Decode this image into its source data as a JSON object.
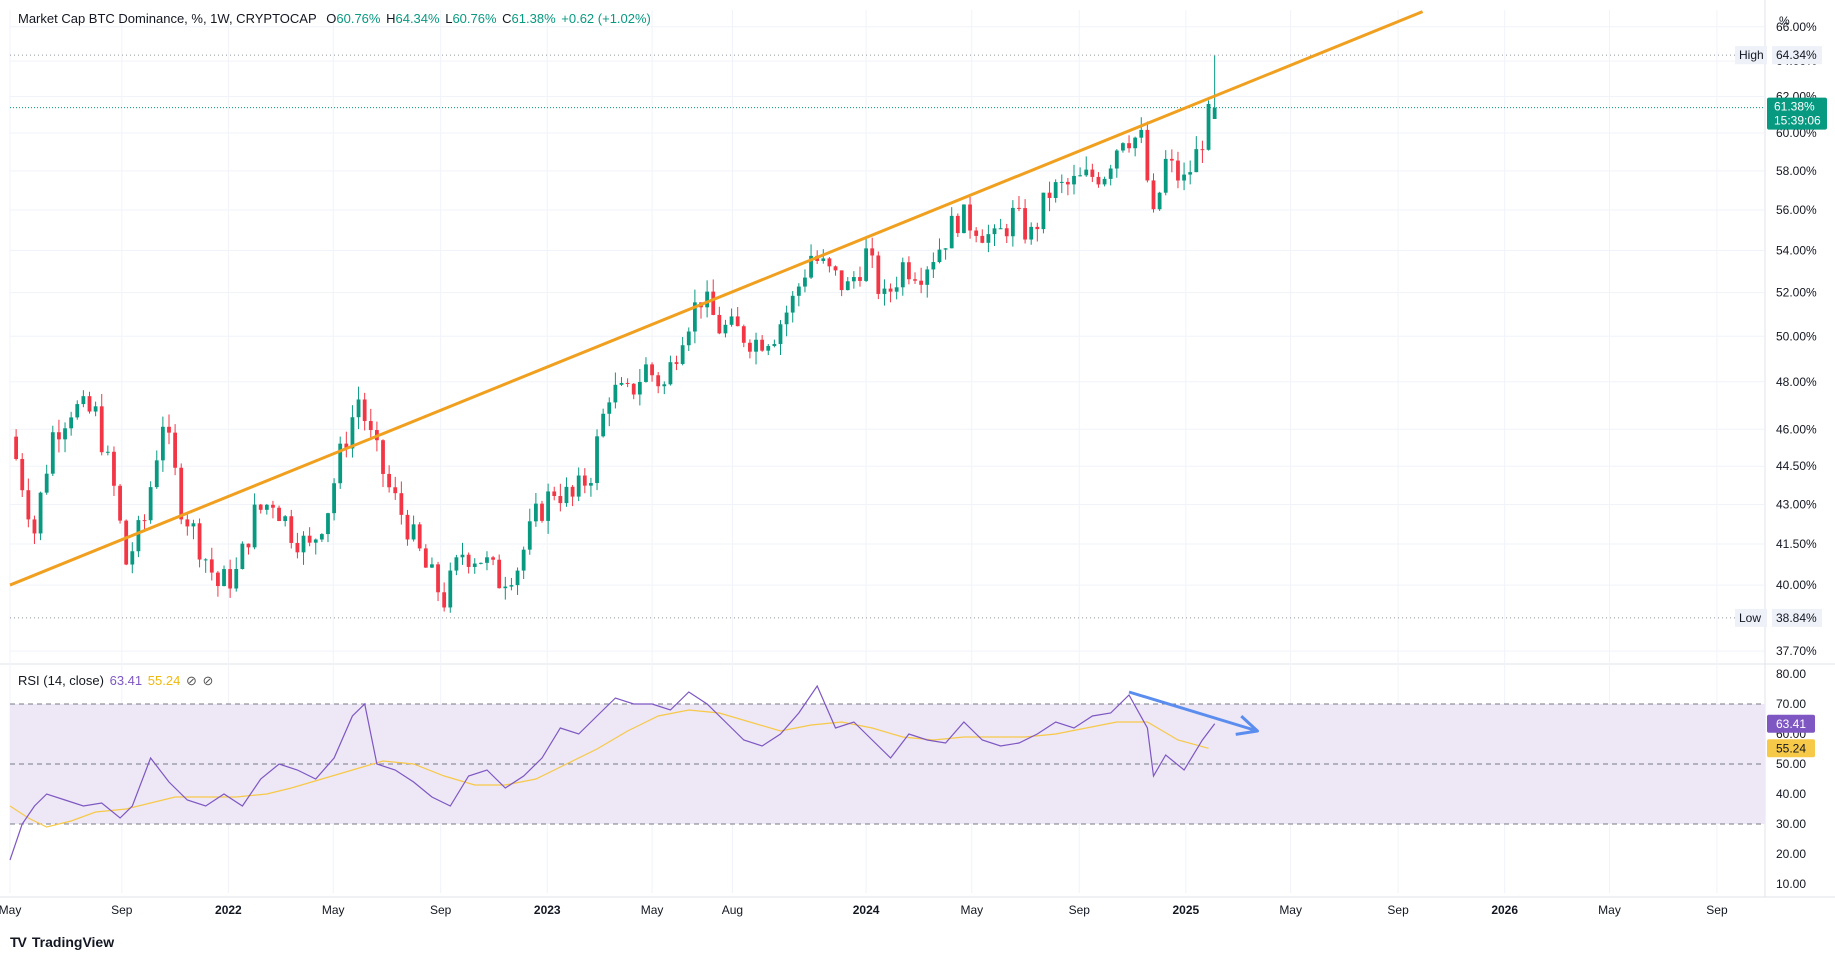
{
  "header": {
    "symbol": "Market Cap BTC Dominance, %, 1W, CRYPTOCAP",
    "o_label": "O",
    "o_value": "60.76%",
    "h_label": "H",
    "h_value": "64.34%",
    "l_label": "L",
    "l_value": "60.76%",
    "c_label": "C",
    "c_value": "61.38%",
    "change": "+0.62 (+1.02%)"
  },
  "rsi_legend": {
    "title": "RSI (14, close)",
    "rsi_value": "63.41",
    "ma_value": "55.24",
    "icons": [
      "hide-icon",
      "hide-icon"
    ]
  },
  "brand": {
    "logo": "TV",
    "name": "TradingView"
  },
  "price_scale": {
    "unit": "%",
    "ticks": [
      "66.00%",
      "64.00%",
      "62.00%",
      "60.00%",
      "58.00%",
      "56.00%",
      "54.00%",
      "52.00%",
      "50.00%",
      "48.00%",
      "46.00%",
      "44.50%",
      "43.00%",
      "41.50%",
      "40.00%",
      "37.70%"
    ],
    "high_label": "High",
    "high_value": "64.34%",
    "low_label": "Low",
    "low_value": "38.84%",
    "last_value": "61.38%",
    "countdown": "15:39:06"
  },
  "rsi_scale": {
    "ticks": [
      "80.00",
      "70.00",
      "60.00",
      "50.00",
      "40.00",
      "30.00",
      "20.00",
      "10.00"
    ],
    "rsi_value": "63.41",
    "ma_value": "55.24"
  },
  "time_axis": {
    "labels": [
      "May",
      "Sep",
      "2022",
      "May",
      "Sep",
      "2023",
      "May",
      "Aug",
      "2024",
      "May",
      "Sep",
      "2025",
      "May",
      "Sep",
      "2026",
      "May",
      "Sep"
    ],
    "bold": [
      false,
      false,
      true,
      false,
      false,
      true,
      false,
      false,
      true,
      false,
      false,
      true,
      false,
      false,
      true,
      false,
      false
    ]
  },
  "colors": {
    "up": "#089981",
    "down": "#f23645",
    "trendline": "#f0a01e",
    "rsi_line": "#7e57c2",
    "rsi_ma": "#f7c948",
    "rsi_band": "#ede7f6",
    "arrow": "#5b8def"
  },
  "chart_data": [
    {
      "type": "candlestick",
      "interval": "1W",
      "ylim": [
        37.4,
        67.0
      ],
      "y_scale": "log",
      "x_start": "2021-04-26",
      "x_end": "2026-10-26",
      "close_series": [
        [
          "2021-05-03",
          44.8
        ],
        [
          "2021-05-24",
          42.0
        ],
        [
          "2021-06-14",
          45.8
        ],
        [
          "2021-07-05",
          46.9
        ],
        [
          "2021-08-02",
          46.6
        ],
        [
          "2021-08-23",
          43.6
        ],
        [
          "2021-09-06",
          40.8
        ],
        [
          "2021-09-27",
          42.4
        ],
        [
          "2021-10-18",
          46.4
        ],
        [
          "2021-11-08",
          43.0
        ],
        [
          "2021-11-29",
          41.5
        ],
        [
          "2021-12-20",
          40.0
        ],
        [
          "2022-01-10",
          40.4
        ],
        [
          "2022-01-31",
          42.6
        ],
        [
          "2022-02-21",
          43.2
        ],
        [
          "2022-03-14",
          42.0
        ],
        [
          "2022-04-04",
          41.3
        ],
        [
          "2022-04-25",
          42.9
        ],
        [
          "2022-05-09",
          44.9
        ],
        [
          "2022-05-30",
          47.3
        ],
        [
          "2022-06-13",
          45.6
        ],
        [
          "2022-07-04",
          43.6
        ],
        [
          "2022-07-25",
          42.2
        ],
        [
          "2022-08-15",
          40.6
        ],
        [
          "2022-09-05",
          39.5
        ],
        [
          "2022-09-26",
          41.2
        ],
        [
          "2022-10-17",
          41.0
        ],
        [
          "2022-11-07",
          40.2
        ],
        [
          "2022-11-28",
          40.7
        ],
        [
          "2022-12-19",
          42.5
        ],
        [
          "2023-01-09",
          43.6
        ],
        [
          "2023-01-30",
          43.2
        ],
        [
          "2023-02-20",
          44.3
        ],
        [
          "2023-03-13",
          47.6
        ],
        [
          "2023-04-03",
          47.4
        ],
        [
          "2023-04-24",
          48.6
        ],
        [
          "2023-05-15",
          47.8
        ],
        [
          "2023-06-05",
          50.3
        ],
        [
          "2023-06-26",
          51.8
        ],
        [
          "2023-07-17",
          50.4
        ],
        [
          "2023-08-07",
          50.2
        ],
        [
          "2023-08-28",
          49.8
        ],
        [
          "2023-09-18",
          50.2
        ],
        [
          "2023-10-09",
          51.6
        ],
        [
          "2023-10-30",
          53.8
        ],
        [
          "2023-11-20",
          52.9
        ],
        [
          "2023-12-11",
          52.2
        ],
        [
          "2024-01-01",
          53.8
        ],
        [
          "2024-01-22",
          51.6
        ],
        [
          "2024-02-12",
          53.3
        ],
        [
          "2024-03-04",
          53.1
        ],
        [
          "2024-03-25",
          54.2
        ],
        [
          "2024-04-15",
          55.6
        ],
        [
          "2024-05-06",
          55.3
        ],
        [
          "2024-05-27",
          54.4
        ],
        [
          "2024-06-17",
          55.7
        ],
        [
          "2024-07-08",
          54.7
        ],
        [
          "2024-07-29",
          56.9
        ],
        [
          "2024-08-19",
          57.2
        ],
        [
          "2024-09-09",
          57.6
        ],
        [
          "2024-09-30",
          58.0
        ],
        [
          "2024-10-21",
          60.0
        ],
        [
          "2024-11-11",
          59.6
        ],
        [
          "2024-11-25",
          55.4
        ],
        [
          "2024-12-09",
          58.4
        ],
        [
          "2024-12-30",
          57.4
        ],
        [
          "2025-01-13",
          58.8
        ],
        [
          "2025-01-27",
          60.76
        ],
        [
          "2025-02-03",
          61.38
        ]
      ],
      "last_candle": {
        "open": 60.76,
        "high": 64.34,
        "low": 60.76,
        "close": 61.38
      },
      "high": 64.34,
      "low": 38.84,
      "trendline": {
        "from": [
          "2021-04-26",
          40.0
        ],
        "to": [
          "2025-09-29",
          66.9
        ]
      }
    },
    {
      "type": "line",
      "name": "RSI (14, close)",
      "ylim": [
        7,
        82
      ],
      "bands": {
        "upper": 70,
        "middle": 50,
        "lower": 30
      },
      "rsi": [
        [
          "2021-04-26",
          18
        ],
        [
          "2021-05-10",
          30
        ],
        [
          "2021-05-24",
          36
        ],
        [
          "2021-06-07",
          40
        ],
        [
          "2021-06-28",
          38
        ],
        [
          "2021-07-19",
          36
        ],
        [
          "2021-08-09",
          37
        ],
        [
          "2021-08-30",
          32
        ],
        [
          "2021-09-13",
          36
        ],
        [
          "2021-10-04",
          52
        ],
        [
          "2021-10-25",
          44
        ],
        [
          "2021-11-15",
          38
        ],
        [
          "2021-12-06",
          36
        ],
        [
          "2021-12-27",
          40
        ],
        [
          "2022-01-17",
          36
        ],
        [
          "2022-02-07",
          45
        ],
        [
          "2022-02-28",
          50
        ],
        [
          "2022-03-21",
          48
        ],
        [
          "2022-04-11",
          45
        ],
        [
          "2022-05-02",
          52
        ],
        [
          "2022-05-23",
          66
        ],
        [
          "2022-06-06",
          70
        ],
        [
          "2022-06-20",
          50
        ],
        [
          "2022-07-11",
          48
        ],
        [
          "2022-08-01",
          44
        ],
        [
          "2022-08-22",
          39
        ],
        [
          "2022-09-12",
          36
        ],
        [
          "2022-10-03",
          46
        ],
        [
          "2022-10-24",
          48
        ],
        [
          "2022-11-14",
          42
        ],
        [
          "2022-12-05",
          46
        ],
        [
          "2022-12-26",
          52
        ],
        [
          "2023-01-16",
          62
        ],
        [
          "2023-02-06",
          60
        ],
        [
          "2023-02-27",
          66
        ],
        [
          "2023-03-20",
          72
        ],
        [
          "2023-04-10",
          70
        ],
        [
          "2023-05-01",
          70
        ],
        [
          "2023-05-22",
          68
        ],
        [
          "2023-06-12",
          74
        ],
        [
          "2023-07-03",
          70
        ],
        [
          "2023-07-24",
          64
        ],
        [
          "2023-08-14",
          58
        ],
        [
          "2023-09-04",
          56
        ],
        [
          "2023-09-25",
          60
        ],
        [
          "2023-10-16",
          67
        ],
        [
          "2023-11-06",
          76
        ],
        [
          "2023-11-27",
          62
        ],
        [
          "2023-12-18",
          64
        ],
        [
          "2024-01-08",
          58
        ],
        [
          "2024-01-29",
          52
        ],
        [
          "2024-02-19",
          60
        ],
        [
          "2024-03-11",
          58
        ],
        [
          "2024-04-01",
          57
        ],
        [
          "2024-04-22",
          64
        ],
        [
          "2024-05-13",
          58
        ],
        [
          "2024-06-03",
          56
        ],
        [
          "2024-06-24",
          57
        ],
        [
          "2024-07-15",
          60
        ],
        [
          "2024-08-05",
          64
        ],
        [
          "2024-08-26",
          62
        ],
        [
          "2024-09-16",
          66
        ],
        [
          "2024-10-07",
          67
        ],
        [
          "2024-10-28",
          73
        ],
        [
          "2024-11-18",
          62
        ],
        [
          "2024-11-25",
          46
        ],
        [
          "2024-12-09",
          53
        ],
        [
          "2024-12-30",
          48
        ],
        [
          "2025-01-20",
          58
        ],
        [
          "2025-02-03",
          63.41
        ]
      ],
      "rsi_ma": [
        [
          "2021-04-26",
          36
        ],
        [
          "2021-05-17",
          32
        ],
        [
          "2021-06-07",
          29
        ],
        [
          "2021-07-05",
          31
        ],
        [
          "2021-08-02",
          34
        ],
        [
          "2021-09-06",
          35
        ],
        [
          "2021-10-04",
          37
        ],
        [
          "2021-11-01",
          39
        ],
        [
          "2021-12-06",
          39
        ],
        [
          "2022-01-10",
          39
        ],
        [
          "2022-02-14",
          40
        ],
        [
          "2022-03-14",
          42
        ],
        [
          "2022-04-18",
          45
        ],
        [
          "2022-05-23",
          48
        ],
        [
          "2022-06-27",
          51
        ],
        [
          "2022-08-01",
          50
        ],
        [
          "2022-09-05",
          46
        ],
        [
          "2022-10-10",
          43
        ],
        [
          "2022-11-14",
          43
        ],
        [
          "2022-12-19",
          45
        ],
        [
          "2023-01-23",
          50
        ],
        [
          "2023-02-27",
          55
        ],
        [
          "2023-04-03",
          61
        ],
        [
          "2023-05-08",
          66
        ],
        [
          "2023-06-12",
          68
        ],
        [
          "2023-07-17",
          67
        ],
        [
          "2023-08-21",
          64
        ],
        [
          "2023-09-25",
          61
        ],
        [
          "2023-10-30",
          63
        ],
        [
          "2023-12-04",
          64
        ],
        [
          "2024-01-08",
          62
        ],
        [
          "2024-02-12",
          59
        ],
        [
          "2024-03-18",
          58
        ],
        [
          "2024-04-22",
          59
        ],
        [
          "2024-05-27",
          59
        ],
        [
          "2024-07-01",
          59
        ],
        [
          "2024-08-05",
          60
        ],
        [
          "2024-09-09",
          62
        ],
        [
          "2024-10-14",
          64
        ],
        [
          "2024-11-18",
          64
        ],
        [
          "2024-12-23",
          58
        ],
        [
          "2025-01-27",
          55.24
        ]
      ],
      "divergence_arrow": {
        "from": [
          "2024-10-28",
          74
        ],
        "to": [
          "2025-03-24",
          61
        ]
      }
    }
  ]
}
